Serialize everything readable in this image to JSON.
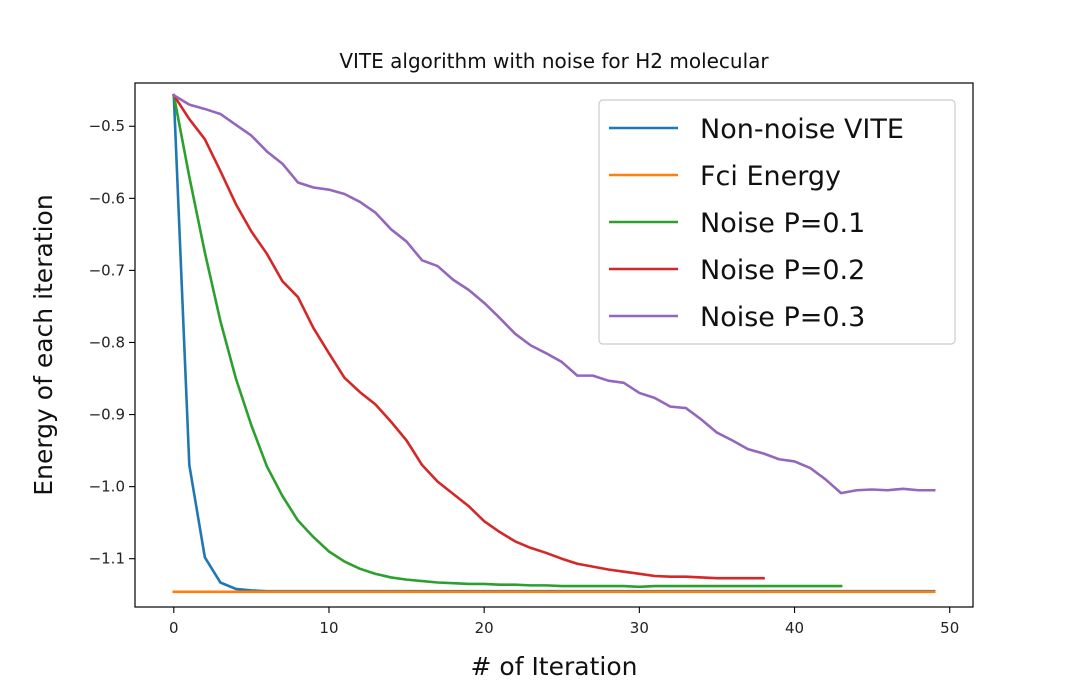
{
  "chart_data": {
    "type": "line",
    "title": "VITE algorithm with noise for H2 molecular",
    "xlabel": "# of Iteration",
    "ylabel": "Energy of each iteration",
    "xlim": [
      -2.5,
      51.5
    ],
    "ylim": [
      -1.167,
      -0.44
    ],
    "xticks": [
      0,
      10,
      20,
      30,
      40,
      50
    ],
    "yticks": [
      -1.1,
      -1.0,
      -0.9,
      -0.8,
      -0.7,
      -0.6,
      -0.5
    ],
    "xtick_labels": [
      "0",
      "10",
      "20",
      "30",
      "40",
      "50"
    ],
    "ytick_labels": [
      "−1.1",
      "−1.0",
      "−0.9",
      "−0.8",
      "−0.7",
      "−0.6",
      "−0.5"
    ],
    "grid": false,
    "legend_position": "top-right",
    "series": [
      {
        "name": "Non-noise VITE",
        "color": "#1f77b4",
        "x": [
          0,
          1,
          2,
          3,
          4,
          5,
          6,
          7,
          8,
          9,
          10,
          11,
          12,
          13,
          14,
          15,
          16,
          17,
          18,
          19,
          20,
          21,
          22,
          23,
          24,
          25,
          26,
          27,
          28,
          29,
          30,
          31,
          32,
          33,
          34,
          35,
          36,
          37,
          38,
          39,
          40,
          41,
          42,
          43,
          44,
          45,
          46,
          47,
          48,
          49
        ],
        "y": [
          -0.457,
          -0.97,
          -1.098,
          -1.133,
          -1.142,
          -1.144,
          -1.145,
          -1.145,
          -1.145,
          -1.145,
          -1.145,
          -1.145,
          -1.145,
          -1.145,
          -1.145,
          -1.145,
          -1.145,
          -1.145,
          -1.145,
          -1.145,
          -1.145,
          -1.145,
          -1.145,
          -1.145,
          -1.145,
          -1.145,
          -1.145,
          -1.145,
          -1.145,
          -1.145,
          -1.145,
          -1.145,
          -1.145,
          -1.145,
          -1.145,
          -1.145,
          -1.145,
          -1.145,
          -1.145,
          -1.145,
          -1.145,
          -1.145,
          -1.145,
          -1.145,
          -1.145,
          -1.145,
          -1.145,
          -1.145,
          -1.145,
          -1.145
        ]
      },
      {
        "name": "Fci Energy",
        "color": "#ff7f0e",
        "x": [
          0,
          49
        ],
        "y": [
          -1.146,
          -1.146
        ]
      },
      {
        "name": "Noise P=0.1",
        "color": "#2ca02c",
        "x": [
          0,
          1,
          2,
          3,
          4,
          5,
          6,
          7,
          8,
          9,
          10,
          11,
          12,
          13,
          14,
          15,
          16,
          17,
          18,
          19,
          20,
          21,
          22,
          23,
          24,
          25,
          26,
          27,
          28,
          29,
          30,
          31,
          32,
          33,
          34,
          35,
          36,
          37,
          38,
          39,
          40,
          41,
          42,
          43
        ],
        "y": [
          -0.457,
          -0.57,
          -0.675,
          -0.77,
          -0.85,
          -0.915,
          -0.972,
          -1.013,
          -1.047,
          -1.07,
          -1.09,
          -1.104,
          -1.114,
          -1.121,
          -1.126,
          -1.129,
          -1.131,
          -1.133,
          -1.134,
          -1.135,
          -1.135,
          -1.136,
          -1.136,
          -1.137,
          -1.137,
          -1.138,
          -1.138,
          -1.138,
          -1.138,
          -1.138,
          -1.139,
          -1.138,
          -1.138,
          -1.138,
          -1.138,
          -1.138,
          -1.138,
          -1.138,
          -1.138,
          -1.138,
          -1.138,
          -1.138,
          -1.138,
          -1.138
        ]
      },
      {
        "name": "Noise P=0.2",
        "color": "#d62728",
        "x": [
          0,
          1,
          2,
          3,
          4,
          5,
          6,
          7,
          8,
          9,
          10,
          11,
          12,
          13,
          14,
          15,
          16,
          17,
          18,
          19,
          20,
          21,
          22,
          23,
          24,
          25,
          26,
          27,
          28,
          29,
          30,
          31,
          32,
          33,
          34,
          35,
          36,
          37,
          38
        ],
        "y": [
          -0.457,
          -0.49,
          -0.518,
          -0.562,
          -0.608,
          -0.646,
          -0.677,
          -0.715,
          -0.737,
          -0.78,
          -0.815,
          -0.849,
          -0.869,
          -0.886,
          -0.91,
          -0.936,
          -0.97,
          -0.993,
          -1.01,
          -1.027,
          -1.048,
          -1.063,
          -1.076,
          -1.085,
          -1.092,
          -1.1,
          -1.107,
          -1.111,
          -1.115,
          -1.118,
          -1.121,
          -1.124,
          -1.125,
          -1.125,
          -1.126,
          -1.127,
          -1.127,
          -1.127,
          -1.127
        ]
      },
      {
        "name": "Noise P=0.3",
        "color": "#9467bd",
        "x": [
          0,
          1,
          2,
          3,
          4,
          5,
          6,
          7,
          8,
          9,
          10,
          11,
          12,
          13,
          14,
          15,
          16,
          17,
          18,
          19,
          20,
          21,
          22,
          23,
          24,
          25,
          26,
          27,
          28,
          29,
          30,
          31,
          32,
          33,
          34,
          35,
          36,
          37,
          38,
          39,
          40,
          41,
          42,
          43,
          44,
          45,
          46,
          47,
          48,
          49
        ],
        "y": [
          -0.457,
          -0.47,
          -0.476,
          -0.483,
          -0.498,
          -0.513,
          -0.535,
          -0.552,
          -0.578,
          -0.585,
          -0.588,
          -0.594,
          -0.605,
          -0.62,
          -0.643,
          -0.66,
          -0.686,
          -0.694,
          -0.713,
          -0.727,
          -0.745,
          -0.766,
          -0.788,
          -0.804,
          -0.815,
          -0.827,
          -0.846,
          -0.846,
          -0.853,
          -0.856,
          -0.87,
          -0.877,
          -0.889,
          -0.891,
          -0.907,
          -0.925,
          -0.936,
          -0.948,
          -0.954,
          -0.962,
          -0.965,
          -0.974,
          -0.99,
          -1.009,
          -1.005,
          -1.004,
          -1.005,
          -1.003,
          -1.005,
          -1.005
        ]
      }
    ]
  }
}
